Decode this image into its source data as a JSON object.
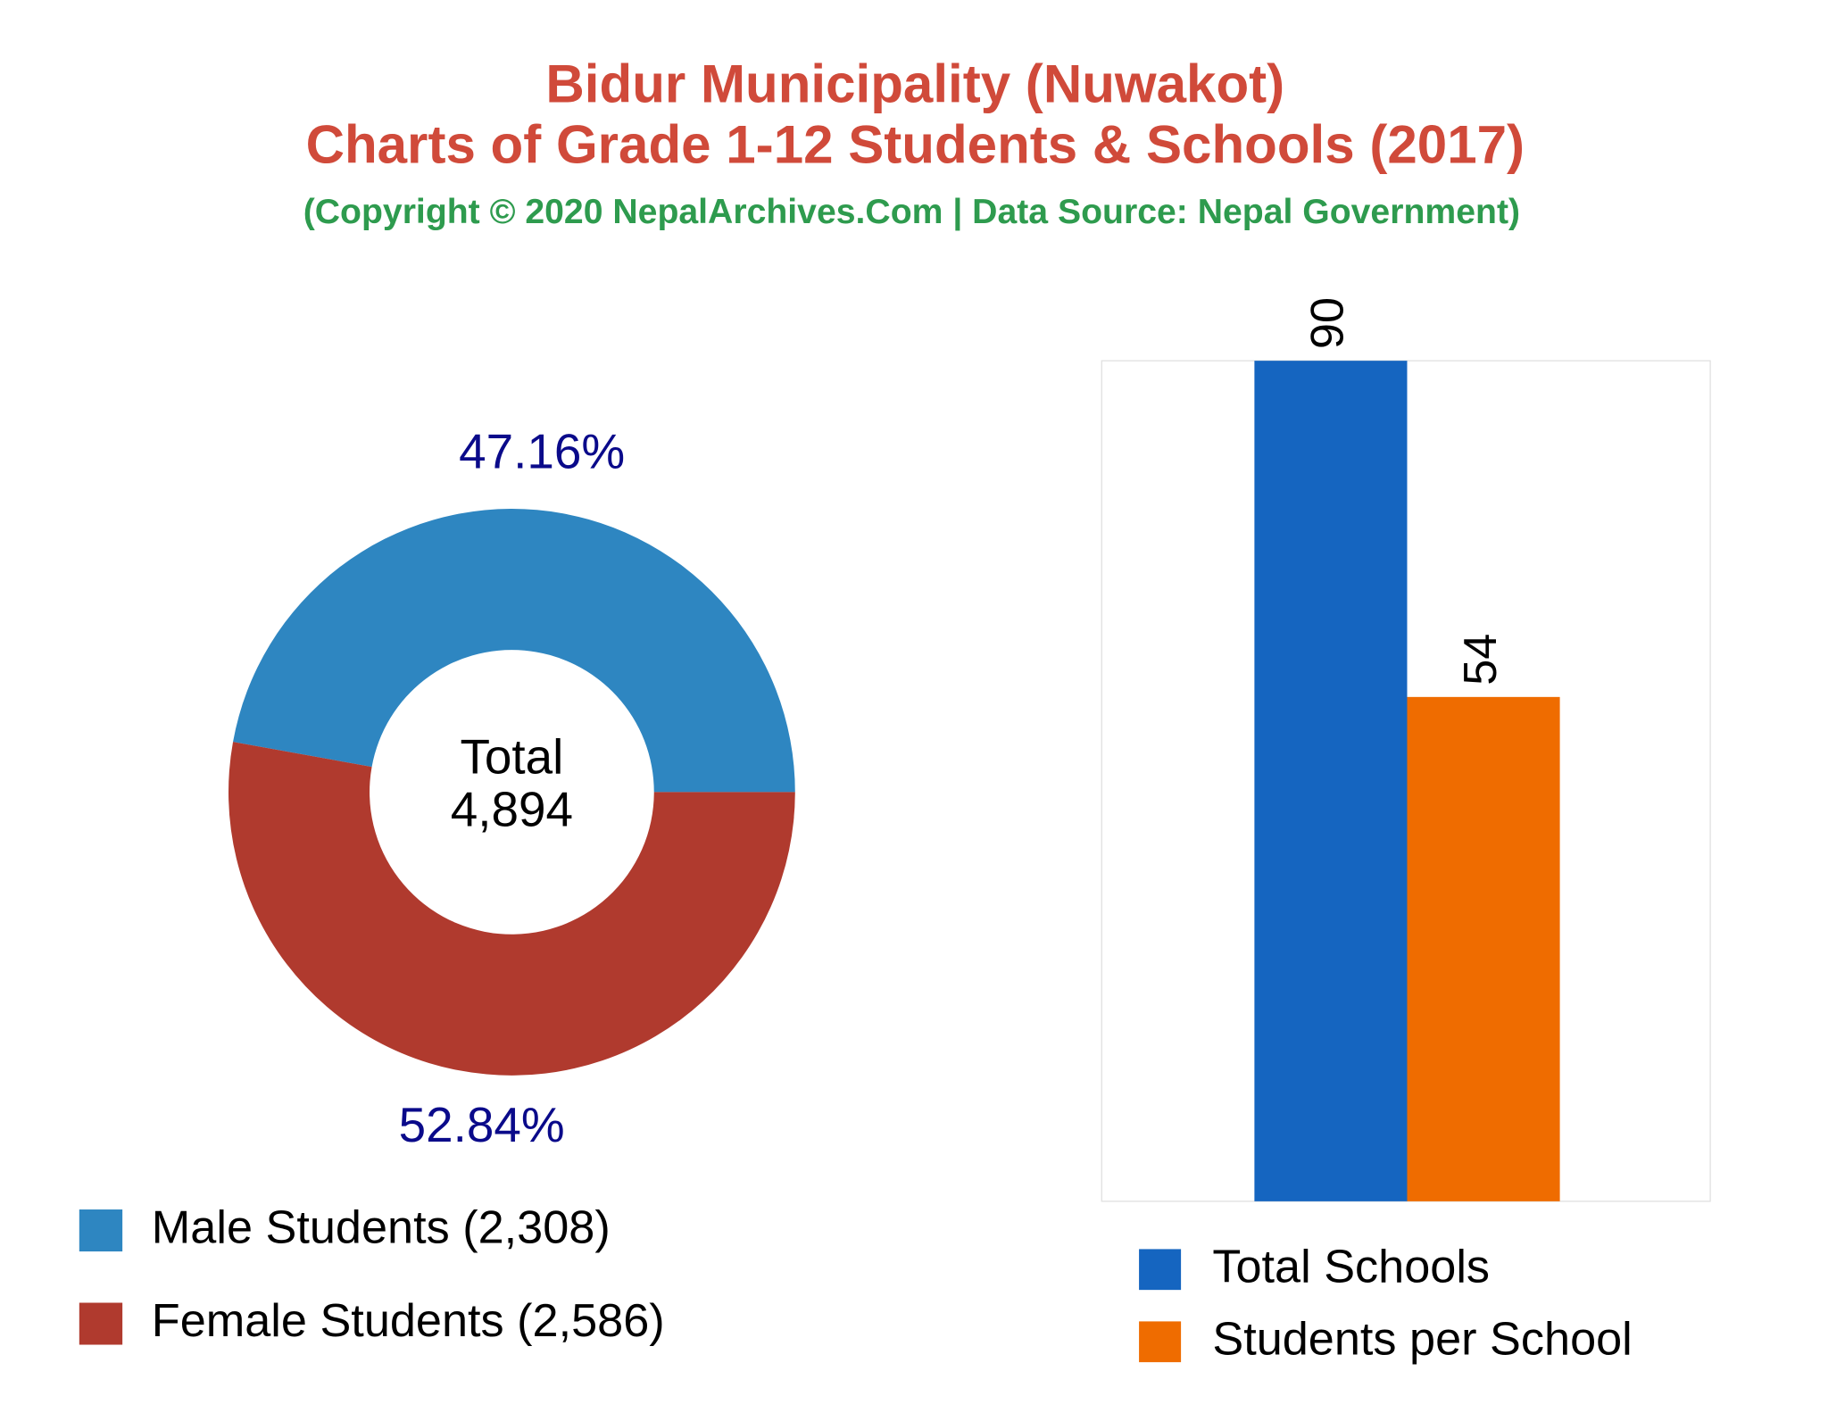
{
  "header": {
    "title": [
      "Bidur Municipality (Nuwakot)",
      "Charts of Grade 1-12 Students & Schools (2017)"
    ],
    "subtitle": "(Copyright © 2020 NepalArchives.Com | Data Source: Nepal Government)"
  },
  "chart_data": [
    {
      "type": "donut",
      "categories": [
        "Male Students (2,308)",
        "Female Students (2,586)"
      ],
      "values": [
        47.16,
        52.84
      ],
      "value_labels": [
        "47.16%",
        "52.84%"
      ],
      "colors": [
        "#2e86c1",
        "#b03a2e"
      ],
      "center_text": [
        "Total",
        "4,894"
      ]
    },
    {
      "type": "bar",
      "series": [
        {
          "name": "Total Schools",
          "color": "#1565c0",
          "values": [
            90
          ]
        },
        {
          "name": "Students per School",
          "color": "#ef6c00",
          "values": [
            54
          ]
        }
      ],
      "ylim": [
        0,
        90
      ]
    }
  ]
}
